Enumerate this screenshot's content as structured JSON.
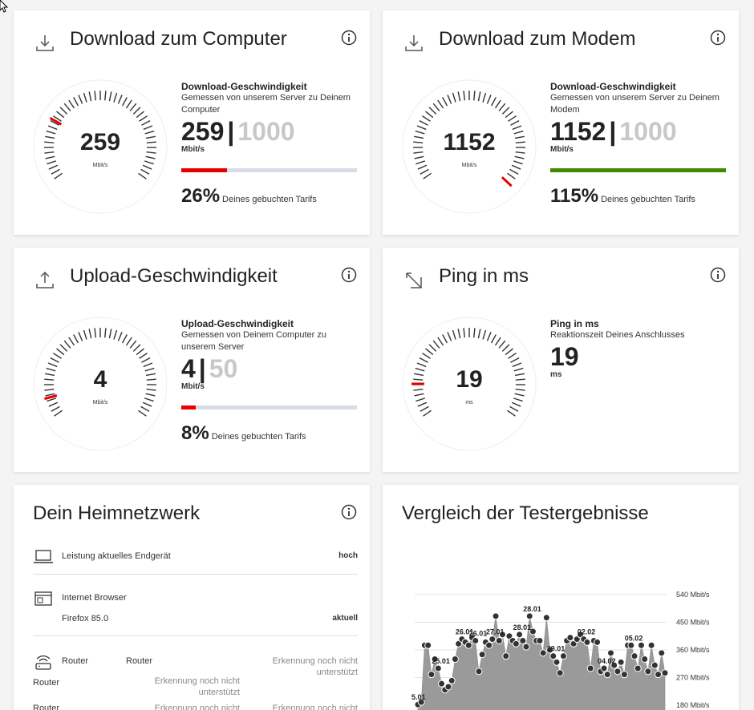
{
  "colors": {
    "red": "#e60000",
    "green": "#428a00",
    "track": "#d7dce6",
    "max_grey": "#c8c8c8"
  },
  "cards": {
    "dl_computer": {
      "title": "Download zum Computer",
      "icon": "download-icon",
      "gauge_value": "259",
      "gauge_unit": "Mbit/s",
      "stat_title": "Download-Geschwindigkeit",
      "stat_sub": "Gemessen von unserem Server zu Deinem Computer",
      "value": "259",
      "sep": "|",
      "max": "1000",
      "unit": "Mbit/s",
      "fraction": 0.26,
      "percent": "26%",
      "percent_text": "Deines gebuchten Tarifs"
    },
    "dl_modem": {
      "title": "Download zum Modem",
      "icon": "download-icon",
      "gauge_value": "1152",
      "gauge_unit": "Mbit/s",
      "stat_title": "Download-Geschwindigkeit",
      "stat_sub": "Gemessen von unserem Server zu Deinem Modem",
      "value": "1152",
      "sep": "|",
      "max": "1000",
      "unit": "Mbit/s",
      "fraction": 1.0,
      "percent": "115%",
      "percent_text": "Deines gebuchten Tarifs"
    },
    "upload": {
      "title": "Upload-Geschwindigkeit",
      "icon": "upload-icon",
      "gauge_value": "4",
      "gauge_unit": "Mbit/s",
      "stat_title": "Upload-Geschwindigkeit",
      "stat_sub": "Gemessen von Deinem Computer zu unserem Server",
      "value": "4",
      "sep": "|",
      "max": "50",
      "unit": "Mbit/s",
      "fraction": 0.08,
      "percent": "8%",
      "percent_text": "Deines gebuchten Tarifs"
    },
    "ping": {
      "title": "Ping in ms",
      "icon": "ping-arrows-icon",
      "gauge_value": "19",
      "gauge_unit": "ms",
      "stat_title": "Ping in ms",
      "stat_sub": "Reaktionszeit Deines Anschlusses",
      "value": "19",
      "unit": "ms"
    }
  },
  "heimnetz": {
    "title": "Dein Heimnetzwerk",
    "device_label": "Leistung aktuelles Endgerät",
    "device_status": "hoch",
    "browser_label": "Internet Browser",
    "browser_name": "Firefox 85.0",
    "browser_status": "aktuell",
    "router_label": "Router",
    "router_col2": "Router",
    "router_status": "Erkennung noch nicht unterstützt",
    "router_row2_label": "Router",
    "router_row2_mid": "Erkennung noch nicht unterstützt",
    "router_row3_label": "Router",
    "router_row3_mid": "Erkennung noch nicht",
    "router_row3_right": "Erkennung noch nicht"
  },
  "compare": {
    "title": "Vergleich der Testergebnisse"
  },
  "chart_data": {
    "type": "area",
    "title": "Vergleich der Testergebnisse",
    "y_tick_labels": [
      "540 Mbit/s",
      "450 Mbit/s",
      "360 Mbit/s",
      "270 Mbit/s",
      "180 Mbit/s"
    ],
    "y_ticks": [
      540,
      450,
      360,
      270,
      180
    ],
    "ylim": [
      180,
      540
    ],
    "date_labels": [
      "5.01",
      "25.01",
      "26.01",
      "26.01",
      "27.01",
      "28.01",
      "28.01",
      "29.01",
      "02.02",
      "04.02",
      "05.02"
    ],
    "values": [
      182,
      190,
      375,
      375,
      280,
      330,
      300,
      250,
      230,
      240,
      260,
      330,
      380,
      395,
      385,
      375,
      400,
      390,
      290,
      345,
      385,
      375,
      395,
      470,
      390,
      410,
      340,
      405,
      390,
      380,
      410,
      390,
      370,
      470,
      420,
      390,
      390,
      350,
      465,
      360,
      340,
      320,
      285,
      340,
      390,
      400,
      380,
      395,
      410,
      395,
      385,
      300,
      390,
      385,
      290,
      300,
      280,
      350,
      310,
      290,
      320,
      280,
      375,
      375,
      340,
      300,
      375,
      330,
      290,
      375,
      310,
      280,
      350,
      285
    ]
  }
}
